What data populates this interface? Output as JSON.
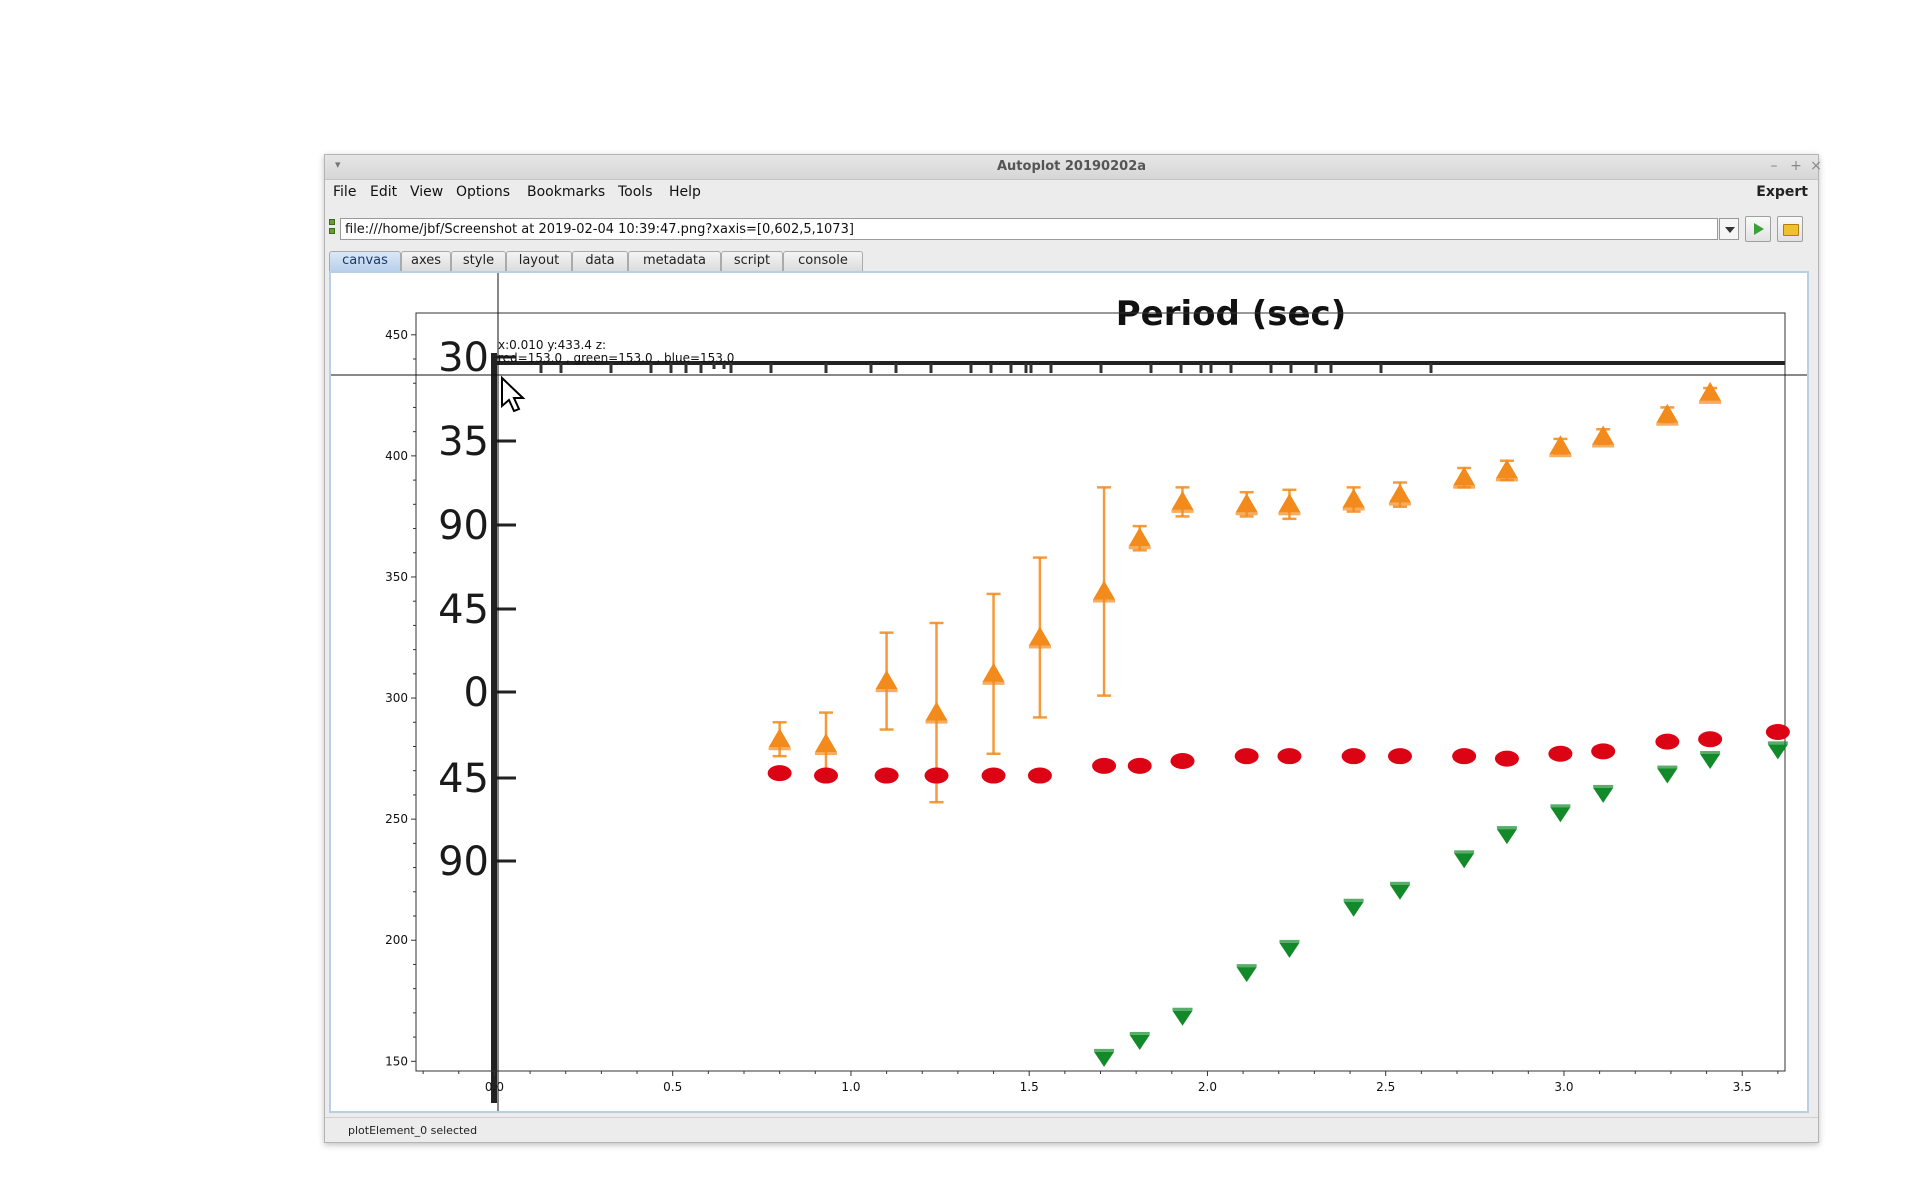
{
  "window": {
    "title": "Autoplot 20190202a"
  },
  "menubar": {
    "items": [
      "File",
      "Edit",
      "View",
      "Options",
      "Bookmarks",
      "Tools",
      "Help"
    ],
    "expert_label": "Expert"
  },
  "urlbar": {
    "value": "file:///home/jbf/Screenshot at 2019-02-04 10:39:47.png?xaxis=[0,602,5,1073]"
  },
  "tabs": [
    "canvas",
    "axes",
    "style",
    "layout",
    "data",
    "metadata",
    "script",
    "console"
  ],
  "active_tab": "canvas",
  "readout": {
    "line1": "x:0.010  y:433.4  z:",
    "line2": "red=153.0 , green=153.0 , blue=153.0"
  },
  "background_image_labels": {
    "title_fragment": "Period (sec)",
    "left_labels": [
      "30",
      "35",
      "90",
      "45",
      "0",
      "45",
      "90"
    ]
  },
  "status": {
    "text": "plotElement_0 selected"
  },
  "colors": {
    "orange": "#f28a1c",
    "red": "#dc0414",
    "green": "#138a2a",
    "selected_tab": "#b9d0ec"
  },
  "chart_data": {
    "type": "scatter",
    "xlim": [
      -0.22,
      3.62
    ],
    "ylim": [
      146,
      459
    ],
    "x_ticks": [
      "0.0",
      "0.5",
      "1.0",
      "1.5",
      "2.0",
      "2.5",
      "3.0",
      "3.5"
    ],
    "x_tick_values": [
      0,
      0.5,
      1.0,
      1.5,
      2.0,
      2.5,
      3.0,
      3.5
    ],
    "y_ticks": [
      "150",
      "200",
      "250",
      "300",
      "350",
      "400",
      "450"
    ],
    "y_tick_values": [
      150,
      200,
      250,
      300,
      350,
      400,
      450
    ],
    "crosshair": {
      "x": 0.01,
      "y": 433.4
    },
    "series": [
      {
        "marker": "triangle-up",
        "color": "#f28a1c",
        "x": [
          0.8,
          0.93,
          1.1,
          1.24,
          1.4,
          1.53,
          1.71,
          1.81,
          1.93,
          2.11,
          2.23,
          2.41,
          2.54,
          2.72,
          2.84,
          2.99,
          3.11,
          3.29,
          3.41
        ],
        "y": [
          283,
          281,
          307,
          294,
          310,
          325,
          344,
          366,
          381,
          380,
          380,
          382,
          384,
          391,
          394,
          404,
          408,
          417,
          426
        ],
        "err": [
          7,
          13,
          20,
          37,
          33,
          33,
          43,
          5,
          6,
          5,
          6,
          5,
          5,
          4,
          4,
          3,
          3,
          3,
          2
        ]
      },
      {
        "marker": "circle",
        "color": "#dc0414",
        "x": [
          0.8,
          0.93,
          1.1,
          1.24,
          1.4,
          1.53,
          1.71,
          1.81,
          1.93,
          2.11,
          2.23,
          2.41,
          2.54,
          2.72,
          2.84,
          2.99,
          3.11,
          3.29,
          3.41,
          3.6
        ],
        "y": [
          269,
          268,
          268,
          268,
          268,
          268,
          272,
          272,
          274,
          276,
          276,
          276,
          276,
          276,
          275,
          277,
          278,
          282,
          283,
          286
        ],
        "err": []
      },
      {
        "marker": "triangle-down",
        "color": "#138a2a",
        "x": [
          1.71,
          1.81,
          1.93,
          2.11,
          2.23,
          2.41,
          2.54,
          2.72,
          2.84,
          2.99,
          3.11,
          3.29,
          3.41,
          3.6
        ],
        "y": [
          151,
          158,
          168,
          186,
          196,
          213,
          220,
          233,
          243,
          252,
          260,
          268,
          274,
          278
        ],
        "err": []
      }
    ]
  }
}
